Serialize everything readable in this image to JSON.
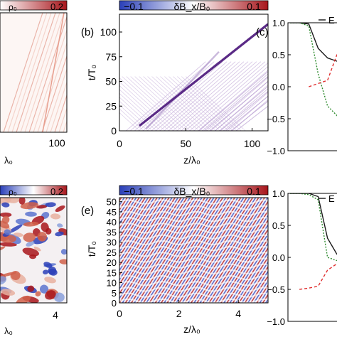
{
  "chart_data": [
    {
      "id": "a",
      "type": "heatmap",
      "panel_label": "",
      "colorbar_label": "ρ₀",
      "colorbar_max_label": "0.2",
      "xlabel": "λ₀",
      "x_tick_labels": [
        "100"
      ],
      "note": "panel cropped at left edge"
    },
    {
      "id": "b",
      "type": "heatmap",
      "panel_label": "(b)",
      "colorbar_label": "δB_x/B₀",
      "colorbar_min_label": "−0.1",
      "colorbar_max_label": "0.1",
      "xlabel": "z/λ₀",
      "ylabel": "t/T₀",
      "xlim": [
        0,
        112
      ],
      "ylim": [
        0,
        118
      ],
      "x_ticks": [
        0,
        50,
        100
      ],
      "y_ticks": [
        0,
        25,
        50,
        75,
        100
      ],
      "x_tick_labels": [
        "0",
        "50",
        "100"
      ],
      "y_tick_labels": [
        "0",
        "25",
        "50",
        "75",
        "100"
      ],
      "features": {
        "main_beam": {
          "z": [
            15,
            112
          ],
          "t": [
            5,
            108
          ]
        },
        "mirrored_beam": {
          "z": [
            20,
            75
          ],
          "t": [
            2,
            80
          ]
        }
      }
    },
    {
      "id": "c",
      "type": "line",
      "panel_label": "(c)",
      "legend": [
        "E"
      ],
      "ylim": [
        -1.0,
        1.0
      ],
      "y_ticks": [
        -1.0,
        -0.5,
        0.0,
        0.5,
        1.0
      ],
      "y_tick_labels": [
        "−1.0",
        "−0.5",
        "0.0",
        "0.5",
        "1.0"
      ],
      "series": [
        {
          "color": "#1a1a1a",
          "style": "solid",
          "values": [
            1.0,
            1.0,
            0.98,
            0.6,
            0.45,
            0.4,
            0.45
          ]
        },
        {
          "color": "#2e8b2e",
          "style": "dotted",
          "values": [
            1.0,
            1.0,
            0.95,
            0.2,
            -0.3,
            -0.45,
            -0.1
          ]
        },
        {
          "color": "#e03030",
          "style": "dashed",
          "values": [
            null,
            null,
            0.0,
            0.05,
            0.1,
            0.5,
            0.55
          ]
        }
      ]
    },
    {
      "id": "d",
      "type": "heatmap",
      "panel_label": "",
      "colorbar_label": "ρ₀",
      "colorbar_max_label": "0.2",
      "xlabel": "λ₀",
      "x_tick_labels": [
        "4"
      ],
      "note": "panel cropped at left edge"
    },
    {
      "id": "e",
      "type": "heatmap",
      "panel_label": "(e)",
      "colorbar_label": "δB_x/B₀",
      "colorbar_min_label": "−0.1",
      "colorbar_max_label": "0.1",
      "xlabel": "z/λ₀",
      "ylabel": "t/T₀",
      "xlim": [
        0,
        5
      ],
      "ylim": [
        0,
        52
      ],
      "x_ticks": [
        0,
        2,
        4
      ],
      "y_ticks": [
        0,
        5,
        10,
        15,
        20,
        25,
        30,
        35,
        40,
        45,
        50
      ],
      "x_tick_labels": [
        "0",
        "2",
        "4"
      ],
      "y_tick_labels": [
        "0",
        "5",
        "10",
        "15",
        "20",
        "25",
        "30",
        "35",
        "40",
        "45",
        "50"
      ]
    },
    {
      "id": "f",
      "type": "line",
      "panel_label": "(f)",
      "legend": [
        "E"
      ],
      "ylim": [
        -1.0,
        1.0
      ],
      "y_ticks": [
        -1.0,
        -0.5,
        0.0,
        0.5,
        1.0
      ],
      "y_tick_labels": [
        "−1.0",
        "−0.5",
        "0.0",
        "0.5",
        "1.0"
      ],
      "series": [
        {
          "color": "#1a1a1a",
          "style": "solid",
          "values": [
            1.0,
            1.0,
            1.0,
            0.95,
            0.3,
            0.05,
            0.0
          ]
        },
        {
          "color": "#2e8b2e",
          "style": "dotted",
          "values": [
            1.0,
            1.0,
            0.98,
            0.9,
            0.0,
            -0.05,
            -0.1
          ]
        },
        {
          "color": "#e03030",
          "style": "dashed",
          "values": [
            null,
            -0.5,
            -0.48,
            -0.45,
            -0.2,
            -0.1,
            -0.05
          ]
        }
      ]
    }
  ],
  "colors": {
    "cmap_neg": "#3a4fc4",
    "cmap_mid": "#ffffff",
    "cmap_pos": "#b81e1e",
    "beam": "#5a2a86",
    "light_purple": "#c9b3dc"
  }
}
